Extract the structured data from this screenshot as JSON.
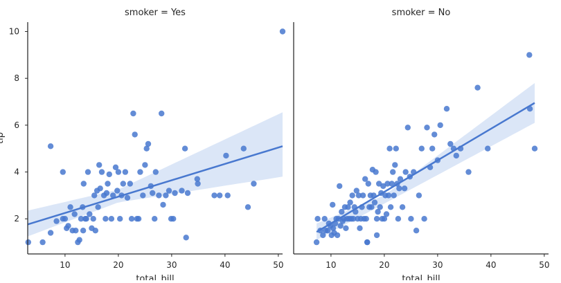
{
  "chart_data": [
    {
      "type": "scatter",
      "title": "smoker = Yes",
      "xlabel": "total_bill",
      "ylabel": "tip",
      "xlim": [
        3,
        50.8
      ],
      "ylim": [
        0.5,
        10.4
      ],
      "xticks": [
        10,
        20,
        30,
        40,
        50
      ],
      "yticks": [
        2,
        4,
        6,
        8,
        10
      ],
      "point_color": "#4878cf",
      "band_color": "#dbe6f7",
      "points": [
        [
          3.1,
          1.0
        ],
        [
          5.8,
          1.0
        ],
        [
          7.3,
          1.4
        ],
        [
          8.4,
          1.9
        ],
        [
          9.6,
          2.0
        ],
        [
          10.0,
          2.0
        ],
        [
          10.3,
          1.6
        ],
        [
          10.6,
          1.7
        ],
        [
          11.0,
          2.5
        ],
        [
          11.4,
          1.5
        ],
        [
          11.8,
          2.2
        ],
        [
          12.0,
          1.5
        ],
        [
          12.4,
          1.0
        ],
        [
          12.7,
          1.1
        ],
        [
          13.0,
          2.0
        ],
        [
          13.3,
          2.5
        ],
        [
          13.4,
          1.5
        ],
        [
          13.5,
          3.5
        ],
        [
          13.8,
          2.0
        ],
        [
          14.0,
          2.0
        ],
        [
          14.3,
          4.0
        ],
        [
          14.6,
          2.2
        ],
        [
          15.0,
          1.6
        ],
        [
          15.3,
          2.0
        ],
        [
          15.5,
          3.0
        ],
        [
          15.7,
          1.5
        ],
        [
          16.0,
          3.2
        ],
        [
          16.2,
          2.5
        ],
        [
          16.4,
          4.3
        ],
        [
          16.6,
          3.3
        ],
        [
          16.9,
          4.0
        ],
        [
          17.3,
          3.0
        ],
        [
          17.6,
          2.0
        ],
        [
          17.8,
          3.1
        ],
        [
          18.0,
          3.5
        ],
        [
          18.3,
          3.9
        ],
        [
          18.7,
          2.0
        ],
        [
          19.0,
          3.0
        ],
        [
          19.5,
          4.2
        ],
        [
          19.8,
          3.2
        ],
        [
          20.0,
          4.0
        ],
        [
          20.3,
          2.0
        ],
        [
          20.6,
          3.0
        ],
        [
          20.9,
          3.5
        ],
        [
          21.3,
          4.0
        ],
        [
          21.7,
          2.9
        ],
        [
          22.2,
          3.5
        ],
        [
          22.5,
          2.0
        ],
        [
          22.8,
          6.5
        ],
        [
          23.1,
          5.6
        ],
        [
          23.5,
          2.0
        ],
        [
          23.8,
          2.0
        ],
        [
          24.1,
          4.0
        ],
        [
          24.6,
          3.0
        ],
        [
          25.0,
          4.3
        ],
        [
          25.3,
          5.0
        ],
        [
          25.6,
          5.2
        ],
        [
          26.1,
          3.4
        ],
        [
          26.4,
          3.1
        ],
        [
          26.8,
          2.0
        ],
        [
          27.0,
          4.0
        ],
        [
          27.6,
          3.0
        ],
        [
          28.1,
          6.5
        ],
        [
          28.4,
          2.6
        ],
        [
          28.9,
          3.0
        ],
        [
          29.5,
          3.2
        ],
        [
          29.9,
          2.0
        ],
        [
          30.3,
          2.0
        ],
        [
          30.6,
          3.1
        ],
        [
          31.9,
          3.2
        ],
        [
          32.5,
          5.0
        ],
        [
          32.7,
          1.2
        ],
        [
          33.0,
          3.1
        ],
        [
          34.8,
          3.7
        ],
        [
          34.9,
          3.5
        ],
        [
          38.0,
          3.0
        ],
        [
          39.0,
          3.0
        ],
        [
          40.5,
          3.0
        ],
        [
          40.2,
          4.7
        ],
        [
          43.5,
          5.0
        ],
        [
          44.3,
          2.5
        ],
        [
          45.4,
          3.5
        ],
        [
          50.8,
          10.0
        ],
        [
          7.3,
          5.1
        ],
        [
          9.6,
          4.0
        ]
      ],
      "regression": {
        "x": [
          3,
          50.8
        ],
        "y": [
          1.76,
          5.1
        ]
      },
      "ci_band": {
        "x": [
          3,
          20,
          50.8
        ],
        "lower": [
          1.25,
          2.7,
          3.8
        ],
        "upper": [
          2.35,
          3.25,
          6.55
        ]
      }
    },
    {
      "type": "scatter",
      "title": "smoker = No",
      "xlabel": "total_bill",
      "ylabel": "",
      "xlim": [
        3,
        50.8
      ],
      "ylim": [
        0.5,
        10.4
      ],
      "xticks": [
        10,
        20,
        30,
        40,
        50
      ],
      "yticks": [],
      "point_color": "#4878cf",
      "band_color": "#dbe6f7",
      "points": [
        [
          7.3,
          1.0
        ],
        [
          7.5,
          2.0
        ],
        [
          8.0,
          1.5
        ],
        [
          8.5,
          1.3
        ],
        [
          8.8,
          2.0
        ],
        [
          9.0,
          1.5
        ],
        [
          9.4,
          1.5
        ],
        [
          9.6,
          1.8
        ],
        [
          9.9,
          1.7
        ],
        [
          10.1,
          1.3
        ],
        [
          10.3,
          2.6
        ],
        [
          10.4,
          1.6
        ],
        [
          10.6,
          1.4
        ],
        [
          10.8,
          1.8
        ],
        [
          11.0,
          2.0
        ],
        [
          11.2,
          1.3
        ],
        [
          11.4,
          2.0
        ],
        [
          11.6,
          3.4
        ],
        [
          11.8,
          1.7
        ],
        [
          12.0,
          2.3
        ],
        [
          12.2,
          1.9
        ],
        [
          12.4,
          2.0
        ],
        [
          12.6,
          2.5
        ],
        [
          12.8,
          1.6
        ],
        [
          13.0,
          2.0
        ],
        [
          13.2,
          2.5
        ],
        [
          13.4,
          2.0
        ],
        [
          13.6,
          2.7
        ],
        [
          13.8,
          2.0
        ],
        [
          14.0,
          3.0
        ],
        [
          14.2,
          2.0
        ],
        [
          14.4,
          2.5
        ],
        [
          14.6,
          2.3
        ],
        [
          14.8,
          3.2
        ],
        [
          15.0,
          2.0
        ],
        [
          15.2,
          3.0
        ],
        [
          15.4,
          1.6
        ],
        [
          15.6,
          2.0
        ],
        [
          15.8,
          2.5
        ],
        [
          16.0,
          3.0
        ],
        [
          16.2,
          2.0
        ],
        [
          16.4,
          3.7
        ],
        [
          16.6,
          2.0
        ],
        [
          16.8,
          1.0
        ],
        [
          17.0,
          3.5
        ],
        [
          17.2,
          2.5
        ],
        [
          17.4,
          3.0
        ],
        [
          17.6,
          2.5
        ],
        [
          17.8,
          4.1
        ],
        [
          18.0,
          3.0
        ],
        [
          18.2,
          2.7
        ],
        [
          18.4,
          4.0
        ],
        [
          18.6,
          2.0
        ],
        [
          18.8,
          2.3
        ],
        [
          19.0,
          3.5
        ],
        [
          19.2,
          2.5
        ],
        [
          19.4,
          3.1
        ],
        [
          19.6,
          2.0
        ],
        [
          19.8,
          3.4
        ],
        [
          20.0,
          2.0
        ],
        [
          20.2,
          3.0
        ],
        [
          20.4,
          2.2
        ],
        [
          20.6,
          3.5
        ],
        [
          20.8,
          3.0
        ],
        [
          21.0,
          5.0
        ],
        [
          21.2,
          2.5
        ],
        [
          21.4,
          3.5
        ],
        [
          21.6,
          4.0
        ],
        [
          21.8,
          3.0
        ],
        [
          22.0,
          4.3
        ],
        [
          22.2,
          5.0
        ],
        [
          22.4,
          3.5
        ],
        [
          22.6,
          2.0
        ],
        [
          22.8,
          3.3
        ],
        [
          23.0,
          3.7
        ],
        [
          23.4,
          2.5
        ],
        [
          23.8,
          3.3
        ],
        [
          24.0,
          4.0
        ],
        [
          24.4,
          5.9
        ],
        [
          24.8,
          3.8
        ],
        [
          25.0,
          2.0
        ],
        [
          25.5,
          4.0
        ],
        [
          26.0,
          1.5
        ],
        [
          26.5,
          3.0
        ],
        [
          27.0,
          5.0
        ],
        [
          27.5,
          2.0
        ],
        [
          28.0,
          5.9
        ],
        [
          28.6,
          4.2
        ],
        [
          29.0,
          5.0
        ],
        [
          29.4,
          5.6
        ],
        [
          30.0,
          4.5
        ],
        [
          30.5,
          6.0
        ],
        [
          31.7,
          6.7
        ],
        [
          32.4,
          5.2
        ],
        [
          33.0,
          5.0
        ],
        [
          33.5,
          4.7
        ],
        [
          34.3,
          5.0
        ],
        [
          35.8,
          4.0
        ],
        [
          37.5,
          7.6
        ],
        [
          39.4,
          5.0
        ],
        [
          47.2,
          9.0
        ],
        [
          47.3,
          6.7
        ],
        [
          48.2,
          5.0
        ],
        [
          16.8,
          1.0
        ],
        [
          18.6,
          1.3
        ]
      ],
      "regression": {
        "x": [
          7.3,
          48.2
        ],
        "y": [
          1.44,
          6.95
        ]
      },
      "ci_band": {
        "x": [
          7.3,
          20,
          48.2
        ],
        "lower": [
          1.1,
          2.65,
          6.1
        ],
        "upper": [
          1.8,
          3.0,
          7.8
        ]
      }
    }
  ]
}
